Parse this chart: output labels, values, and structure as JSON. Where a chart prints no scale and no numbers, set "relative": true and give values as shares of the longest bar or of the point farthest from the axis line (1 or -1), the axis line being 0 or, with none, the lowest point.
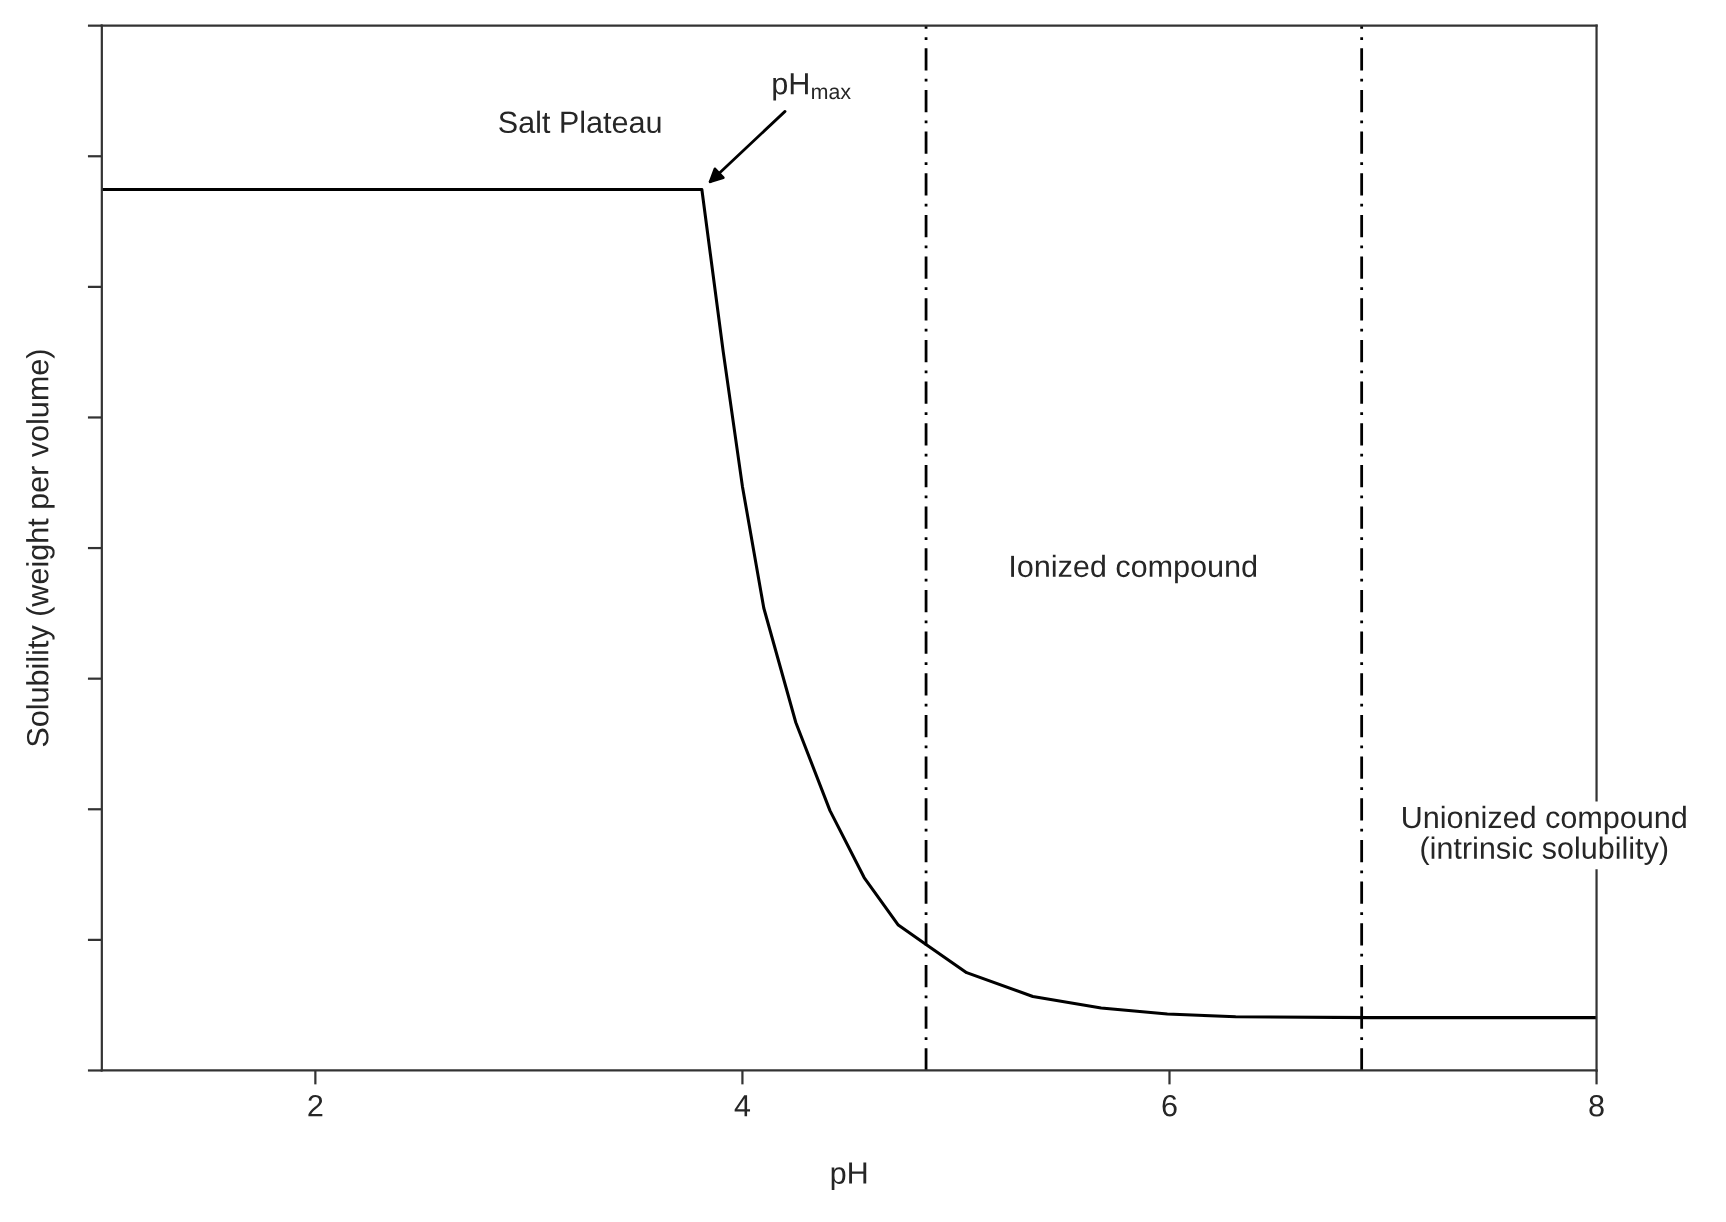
{
  "chart_data": {
    "type": "line",
    "relative": true,
    "xlabel": "pH",
    "ylabel": "Solubility (weight per volume)",
    "xlim": [
      1,
      8
    ],
    "xticks": [
      2,
      4,
      6,
      8
    ],
    "tick_labels": "x",
    "grid": false,
    "legend": false,
    "marker": "none",
    "line_style": "solid",
    "series": [
      {
        "color": "#000000",
        "x": [
          1.0,
          3.81,
          3.91,
          4.0,
          4.1,
          4.25,
          4.41,
          4.57,
          4.73,
          4.86,
          5.05,
          5.36,
          5.68,
          5.99,
          6.31,
          6.94,
          8.0
        ],
        "values": [
          1.0,
          1.0,
          0.816,
          0.663,
          0.525,
          0.395,
          0.295,
          0.219,
          0.165,
          0.143,
          0.111,
          0.084,
          0.071,
          0.064,
          0.061,
          0.06,
          0.06
        ]
      }
    ],
    "ref_lines": [
      {
        "axis": "x",
        "value": 4.86,
        "color": "#000000",
        "line_style": "dashdot"
      },
      {
        "axis": "x",
        "value": 6.9,
        "color": "#000000",
        "line_style": "dashdot"
      }
    ],
    "annotations": [
      "Salt Plateau",
      {
        "text": "pH$_{max}$",
        "x": 3.81,
        "y": 1.0
      },
      "Ionized compound",
      "Unionized compound\n(intrinsic solubility)"
    ]
  }
}
